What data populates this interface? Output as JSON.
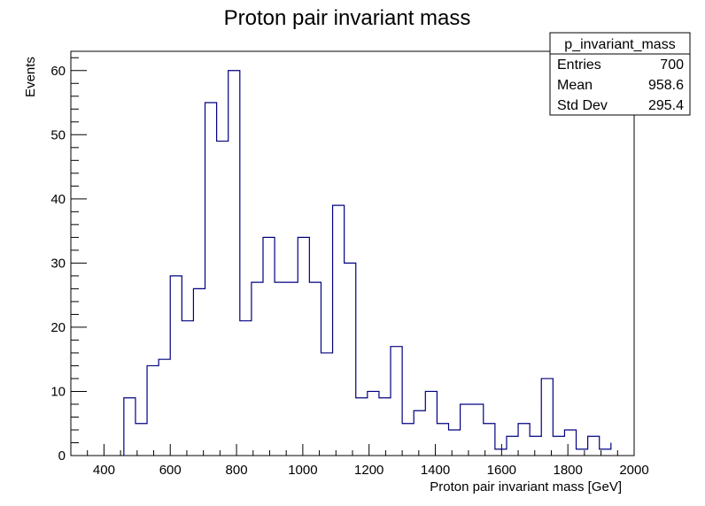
{
  "chart_data": {
    "type": "bar",
    "title": "Proton pair invariant mass",
    "xlabel": "Proton pair invariant mass [GeV]",
    "ylabel": "Events",
    "xlim": [
      300,
      2000
    ],
    "ylim": [
      0,
      63
    ],
    "x_ticks": [
      400,
      600,
      800,
      1000,
      1200,
      1400,
      1600,
      1800,
      2000
    ],
    "y_ticks": [
      0,
      10,
      20,
      30,
      40,
      50,
      60
    ],
    "bin_edges": [
      460,
      495,
      530,
      565,
      600,
      635,
      670,
      705,
      740,
      775,
      810,
      845,
      880,
      915,
      950,
      985,
      1020,
      1055,
      1090,
      1125,
      1160,
      1195,
      1230,
      1265,
      1300,
      1335,
      1370,
      1405,
      1440,
      1475,
      1510,
      1545,
      1580,
      1615,
      1650,
      1685,
      1720,
      1755,
      1790,
      1825,
      1860,
      1895,
      1930
    ],
    "values": [
      9,
      5,
      14,
      15,
      28,
      21,
      26,
      55,
      49,
      60,
      21,
      27,
      34,
      27,
      27,
      34,
      27,
      16,
      39,
      30,
      9,
      10,
      9,
      17,
      5,
      7,
      10,
      5,
      4,
      8,
      8,
      5,
      1,
      3,
      5,
      3,
      12,
      3,
      4,
      1,
      3,
      1,
      2
    ],
    "line_color": "#000080",
    "grid": false,
    "stats_box": {
      "name": "p_invariant_mass",
      "rows": [
        {
          "label": "Entries",
          "value": "700"
        },
        {
          "label": "Mean",
          "value": "958.6"
        },
        {
          "label": "Std Dev",
          "value": "295.4"
        }
      ],
      "placement": "top-right"
    }
  }
}
